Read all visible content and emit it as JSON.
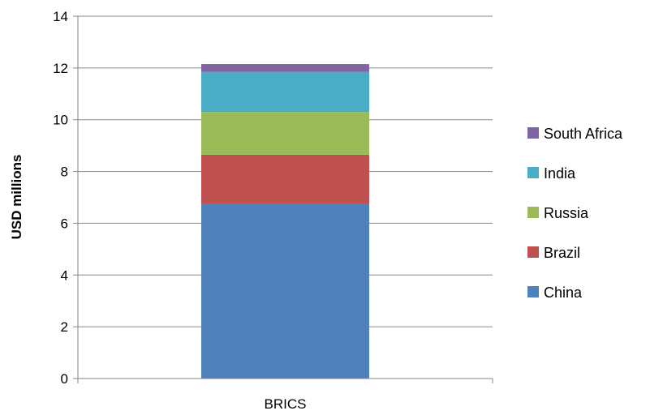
{
  "chart_data": {
    "type": "bar",
    "stacked": true,
    "categories": [
      "BRICS"
    ],
    "series": [
      {
        "name": "China",
        "values": [
          6.75
        ],
        "color": "#4f81bd"
      },
      {
        "name": "Brazil",
        "values": [
          1.9
        ],
        "color": "#c0504d"
      },
      {
        "name": "Russia",
        "values": [
          1.65
        ],
        "color": "#9bbb59"
      },
      {
        "name": "India",
        "values": [
          1.55
        ],
        "color": "#4bacc6"
      },
      {
        "name": "South Africa",
        "values": [
          0.3
        ],
        "color": "#8064a2"
      }
    ],
    "ylabel": "USD millions",
    "ylim": [
      0,
      14
    ],
    "yticks": [
      "0",
      "2",
      "4",
      "6",
      "8",
      "10",
      "12",
      "14"
    ],
    "grid": true,
    "legend_position": "right",
    "legend_order": [
      "South Africa",
      "India",
      "Russia",
      "Brazil",
      "China"
    ],
    "colors": {
      "grid": "#868686",
      "axis": "#868686"
    }
  }
}
